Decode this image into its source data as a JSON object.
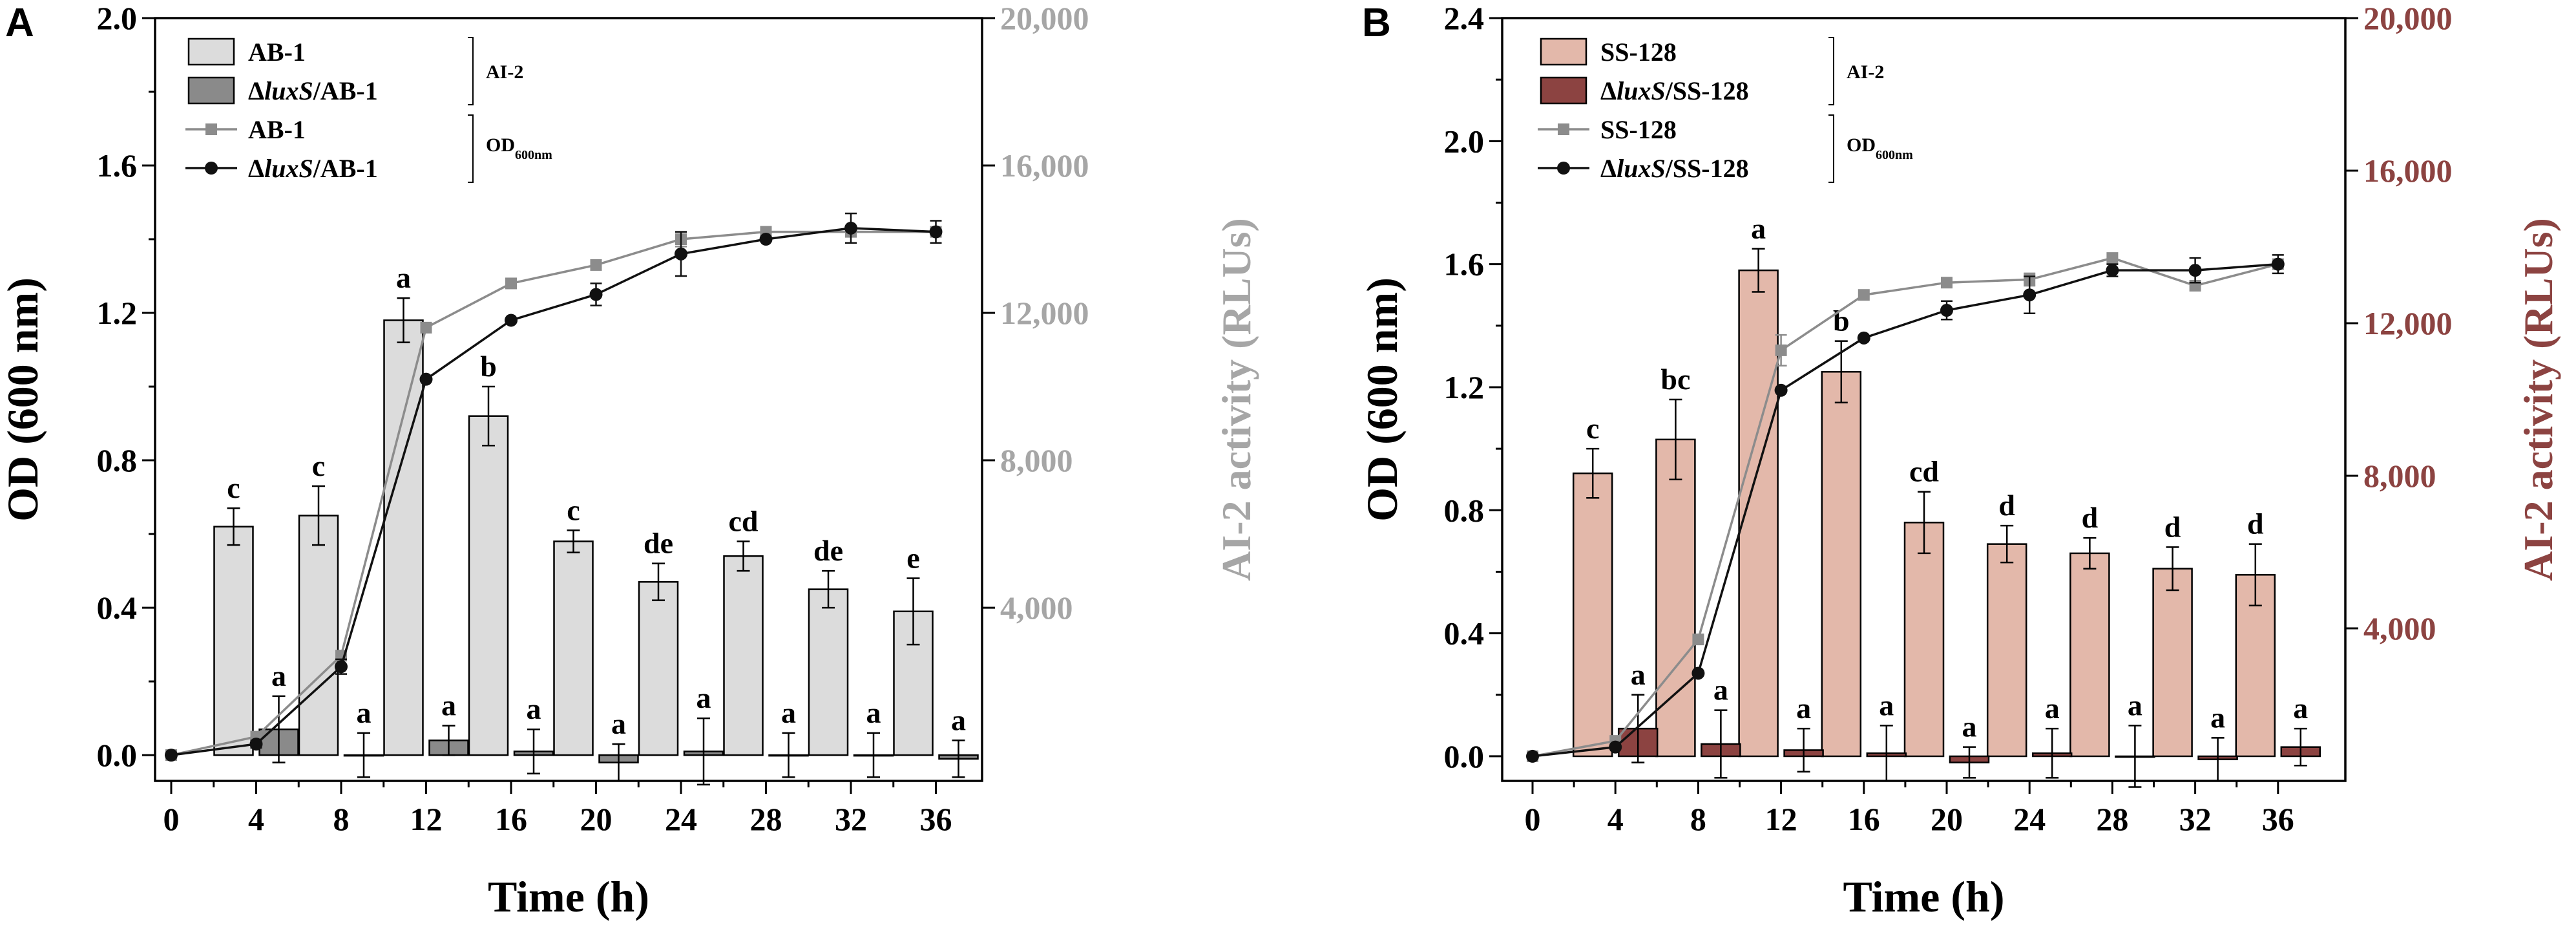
{
  "chart_data": [
    {
      "panel": "A",
      "type": "bar",
      "xlabel": "Time (h)",
      "ylabel_left": "OD (600 nm)",
      "ylabel_right": "AI-2 activity (RLUs)",
      "x_ticks": [
        "0",
        "4",
        "8",
        "12",
        "16",
        "20",
        "24",
        "28",
        "32",
        "36"
      ],
      "y_left_ticks": [
        "0.0",
        "0.4",
        "0.8",
        "1.2",
        "1.6",
        "2.0"
      ],
      "y_right_ticks": [
        "4,000",
        "8,000",
        "12,000",
        "16,000",
        "20,000"
      ],
      "ylim_left": [
        -0.07,
        2.0
      ],
      "colors": {
        "wild_bar": "#dcdcdc",
        "mutant_bar": "#8a8a8a",
        "wild_line": "#8c8c8c",
        "mutant_line": "#111111",
        "right_axis": "#a6a6a6"
      },
      "legend": {
        "ai2_group": "AI-2",
        "od_group_main": "OD",
        "od_group_sub": "600nm",
        "entries": [
          {
            "prefix": "",
            "italic": "",
            "suffix": "AB-1"
          },
          {
            "prefix": "Δ",
            "italic": "luxS",
            "suffix": "/AB-1"
          },
          {
            "prefix": "",
            "italic": "",
            "suffix": "AB-1"
          },
          {
            "prefix": "Δ",
            "italic": "luxS",
            "suffix": "/AB-1"
          }
        ]
      },
      "bar_times": [
        4,
        8,
        12,
        16,
        20,
        24,
        28,
        32,
        36
      ],
      "series": [
        {
          "name": "AB-1 (AI-2)",
          "kind": "bar",
          "values": [
            0.62,
            0.65,
            1.18,
            0.92,
            0.58,
            0.47,
            0.54,
            0.45,
            0.39
          ],
          "errors": [
            0.05,
            0.08,
            0.06,
            0.08,
            0.03,
            0.05,
            0.04,
            0.05,
            0.09
          ],
          "labels": [
            "c",
            "c",
            "a",
            "b",
            "c",
            "de",
            "cd",
            "de",
            "e"
          ]
        },
        {
          "name": "ΔluxS/AB-1 (AI-2)",
          "kind": "bar",
          "values": [
            0.07,
            0.0,
            0.04,
            0.01,
            -0.02,
            0.01,
            0.0,
            0.0,
            -0.01
          ],
          "errors": [
            0.09,
            0.06,
            0.04,
            0.06,
            0.05,
            0.09,
            0.06,
            0.06,
            0.05
          ],
          "labels": [
            "a",
            "a",
            "a",
            "a",
            "a",
            "a",
            "a",
            "a",
            "a"
          ]
        },
        {
          "name": "AB-1 (OD600nm)",
          "kind": "line",
          "x": [
            0,
            4,
            8,
            12,
            16,
            20,
            24,
            28,
            32,
            36
          ],
          "values": [
            0.0,
            0.05,
            0.27,
            1.16,
            1.28,
            1.33,
            1.4,
            1.42,
            1.42,
            1.42
          ],
          "errors": [
            0,
            0,
            0,
            0,
            0,
            0,
            0.02,
            0,
            0,
            0
          ]
        },
        {
          "name": "ΔluxS/AB-1 (OD600nm)",
          "kind": "line",
          "x": [
            0,
            4,
            8,
            12,
            16,
            20,
            24,
            28,
            32,
            36
          ],
          "values": [
            0.0,
            0.03,
            0.24,
            1.02,
            1.18,
            1.25,
            1.36,
            1.4,
            1.43,
            1.42
          ],
          "errors": [
            0,
            0.01,
            0.02,
            0,
            0,
            0.03,
            0.06,
            0,
            0.04,
            0.03
          ]
        }
      ]
    },
    {
      "panel": "B",
      "type": "bar",
      "xlabel": "Time (h)",
      "ylabel_left": "OD (600 nm)",
      "ylabel_right": "AI-2 activity (RLUs)",
      "x_ticks": [
        "0",
        "4",
        "8",
        "12",
        "16",
        "20",
        "24",
        "28",
        "32",
        "36"
      ],
      "y_left_ticks": [
        "0.0",
        "0.4",
        "0.8",
        "1.2",
        "1.6",
        "2.0",
        "2.4"
      ],
      "y_right_ticks": [
        "4,000",
        "8,000",
        "12,000",
        "16,000",
        "20,000"
      ],
      "ylim_left": [
        -0.08,
        2.4
      ],
      "colors": {
        "wild_bar": "#e3b8aa",
        "mutant_bar": "#8c4341",
        "wild_line": "#8c8c8c",
        "mutant_line": "#111111",
        "right_axis": "#8c4341"
      },
      "legend": {
        "ai2_group": "AI-2",
        "od_group_main": "OD",
        "od_group_sub": "600nm",
        "entries": [
          {
            "prefix": "",
            "italic": "",
            "suffix": "SS-128"
          },
          {
            "prefix": "Δ",
            "italic": "luxS",
            "suffix": "/SS-128"
          },
          {
            "prefix": "",
            "italic": "",
            "suffix": "SS-128"
          },
          {
            "prefix": "Δ",
            "italic": "luxS",
            "suffix": "/SS-128"
          }
        ]
      },
      "bar_times": [
        4,
        8,
        12,
        16,
        20,
        24,
        28,
        32,
        36
      ],
      "series": [
        {
          "name": "SS-128 (AI-2)",
          "kind": "bar",
          "values": [
            0.92,
            1.03,
            1.58,
            1.25,
            0.76,
            0.69,
            0.66,
            0.61,
            0.59
          ],
          "errors": [
            0.08,
            0.13,
            0.07,
            0.1,
            0.1,
            0.06,
            0.05,
            0.07,
            0.1
          ],
          "labels": [
            "c",
            "bc",
            "a",
            "b",
            "cd",
            "d",
            "d",
            "d",
            "d"
          ]
        },
        {
          "name": "ΔluxS/SS-128 (AI-2)",
          "kind": "bar",
          "values": [
            0.09,
            0.04,
            0.02,
            0.01,
            -0.02,
            0.01,
            0.0,
            -0.01,
            0.03
          ],
          "errors": [
            0.11,
            0.11,
            0.07,
            0.09,
            0.05,
            0.08,
            0.1,
            0.07,
            0.06
          ],
          "labels": [
            "a",
            "a",
            "a",
            "a",
            "a",
            "a",
            "a",
            "a",
            "a"
          ]
        },
        {
          "name": "SS-128 (OD600nm)",
          "kind": "line",
          "x": [
            0,
            4,
            8,
            12,
            16,
            20,
            24,
            28,
            32,
            36
          ],
          "values": [
            0.0,
            0.05,
            0.38,
            1.32,
            1.5,
            1.54,
            1.55,
            1.62,
            1.53,
            1.6
          ],
          "errors": [
            0,
            0,
            0,
            0.05,
            0,
            0,
            0.02,
            0,
            0,
            0
          ]
        },
        {
          "name": "ΔluxS/SS-128 (OD600nm)",
          "kind": "line",
          "x": [
            0,
            4,
            8,
            12,
            16,
            20,
            24,
            28,
            32,
            36
          ],
          "values": [
            0.0,
            0.03,
            0.27,
            1.19,
            1.36,
            1.45,
            1.5,
            1.58,
            1.58,
            1.6
          ],
          "errors": [
            0,
            0,
            0,
            0,
            0,
            0.03,
            0.06,
            0.02,
            0.04,
            0.03
          ]
        }
      ]
    }
  ]
}
